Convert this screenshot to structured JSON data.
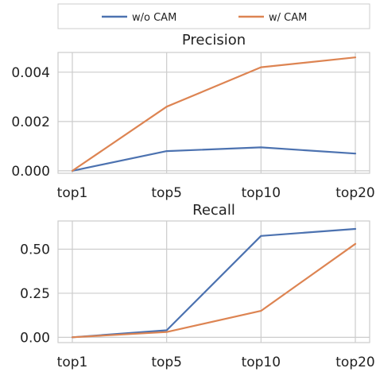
{
  "legend": {
    "placement": "top-center",
    "entries": [
      {
        "label": "w/o CAM",
        "color": "#4c72b0"
      },
      {
        "label": "w/ CAM",
        "color": "#dd8452"
      }
    ]
  },
  "chart_data": [
    {
      "type": "line",
      "title": "Precision",
      "xlabel": "",
      "ylabel": "",
      "categories": [
        "top1",
        "top5",
        "top10",
        "top20"
      ],
      "grid": true,
      "ylim": [
        -0.0001,
        0.0048
      ],
      "yticks": [
        0.0,
        0.002,
        0.004
      ],
      "ytick_labels": [
        "0.000",
        "0.002",
        "0.004"
      ],
      "series": [
        {
          "name": "w/o CAM",
          "color": "#4c72b0",
          "values": [
            0.0,
            0.0008,
            0.00095,
            0.0007
          ]
        },
        {
          "name": "w/ CAM",
          "color": "#dd8452",
          "values": [
            0.0,
            0.0026,
            0.0042,
            0.0046
          ]
        }
      ]
    },
    {
      "type": "line",
      "title": "Recall",
      "xlabel": "",
      "ylabel": "",
      "categories": [
        "top1",
        "top5",
        "top10",
        "top20"
      ],
      "grid": true,
      "ylim": [
        -0.03,
        0.66
      ],
      "yticks": [
        0.0,
        0.25,
        0.5
      ],
      "ytick_labels": [
        "0.00",
        "0.25",
        "0.50"
      ],
      "series": [
        {
          "name": "w/o CAM",
          "color": "#4c72b0",
          "values": [
            0.0,
            0.04,
            0.575,
            0.615
          ]
        },
        {
          "name": "w/ CAM",
          "color": "#dd8452",
          "values": [
            0.0,
            0.03,
            0.15,
            0.53
          ]
        }
      ]
    }
  ]
}
